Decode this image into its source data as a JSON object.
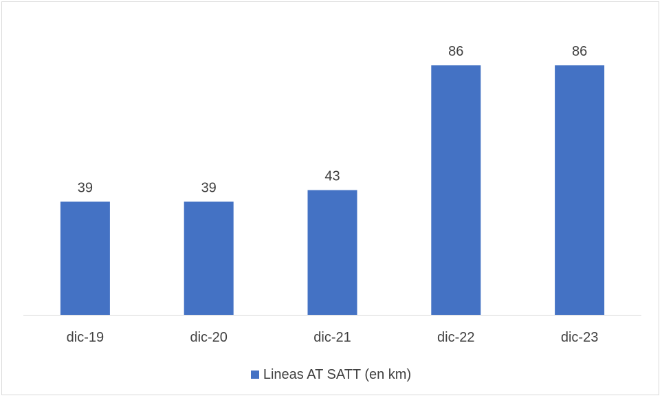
{
  "colors": {
    "bar": "#4472C4",
    "axis": "#d9d9d9",
    "text": "#404040"
  },
  "chart_data": {
    "type": "bar",
    "categories": [
      "dic-19",
      "dic-20",
      "dic-21",
      "dic-22",
      "dic-23"
    ],
    "series": [
      {
        "name": "Lineas AT SATT (en km)",
        "values": [
          39,
          39,
          43,
          86,
          86
        ]
      }
    ],
    "data_labels": [
      "39",
      "39",
      "43",
      "86",
      "86"
    ],
    "ylim": [
      0,
      100
    ],
    "grid": false,
    "legend_position": "bottom"
  }
}
